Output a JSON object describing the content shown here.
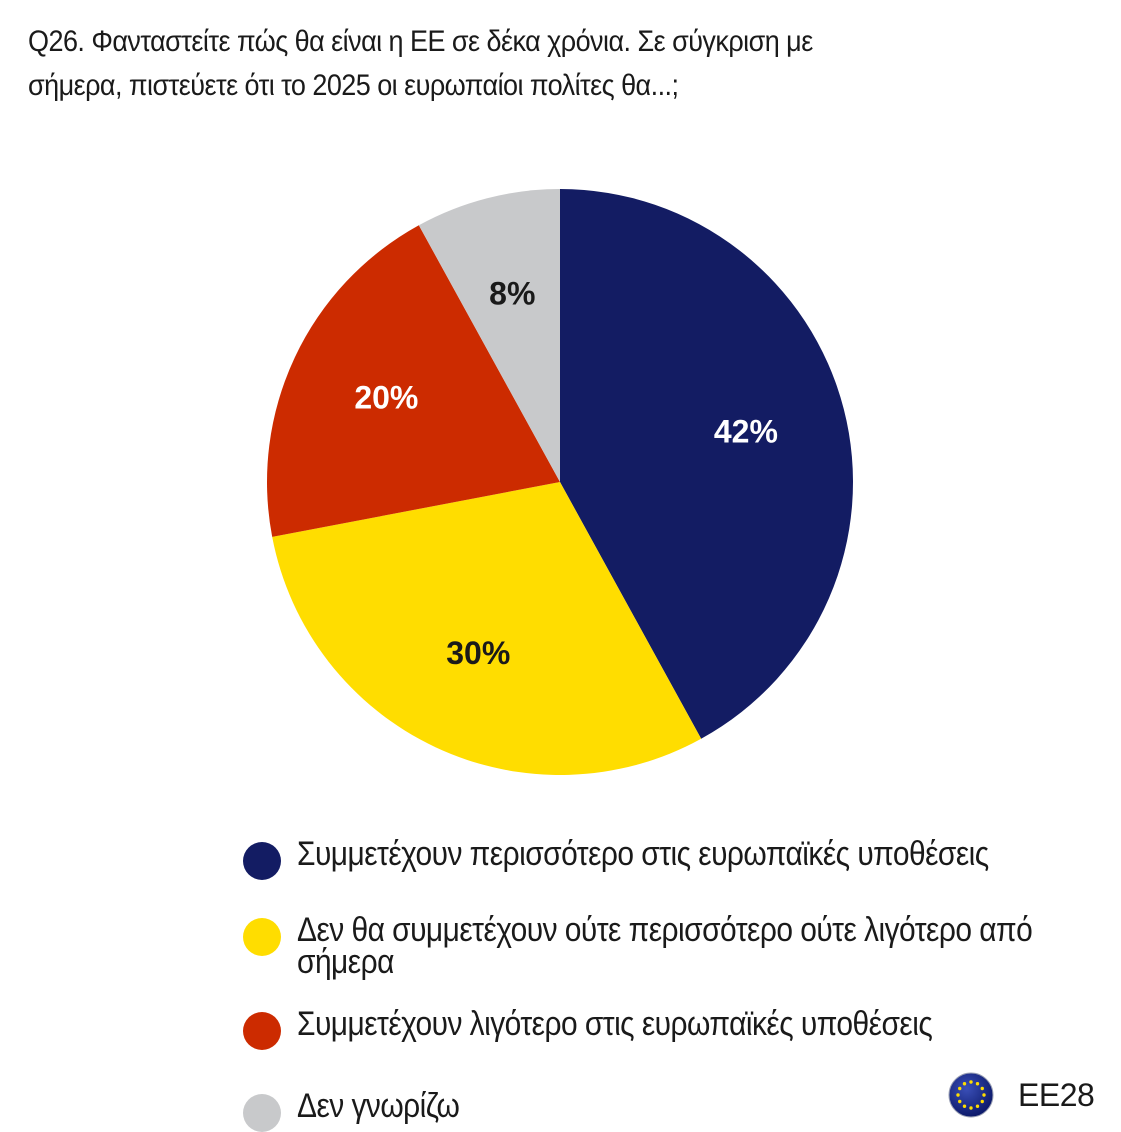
{
  "title_lines": [
    "Q26. Φανταστείτε πώς θα είναι η ΕΕ σε δέκα χρόνια. Σε σύγκριση με",
    "σήμερα, πιστεύετε ότι το 2025 οι ευρωπαίοι πολίτες θα...;"
  ],
  "chart_data": {
    "type": "pie",
    "start": "12 o'clock",
    "direction": "clockwise",
    "slices": [
      {
        "name": "Συμμετέχουν περισσότερο στις ευρωπαϊκές υποθέσεις",
        "value": 42,
        "label": "42%",
        "color": "#131c63",
        "label_color": "#ffffff"
      },
      {
        "name": "Δεν θα συμμετέχουν ούτε περισσότερο ούτε λιγότερο από σήμερα",
        "value": 30,
        "label": "30%",
        "color": "#ffdd00",
        "label_color": "#1a1a1a"
      },
      {
        "name": "Συμμετέχουν λιγότερο στις ευρωπαϊκές υποθέσεις",
        "value": 20,
        "label": "20%",
        "color": "#cc2b00",
        "label_color": "#ffffff"
      },
      {
        "name": "Δεν γνωρίζω",
        "value": 8,
        "label": "8%",
        "color": "#c8c9cb",
        "label_color": "#1a1a1a"
      }
    ],
    "legend": {
      "placement": "bottom",
      "items": [
        {
          "text": "Συμμετέχουν περισσότερο στις ευρωπαϊκές υποθέσεις",
          "color": "#131c63"
        },
        {
          "text": "Δεν θα συμμετέχουν ούτε περισσότερο ούτε λιγότερο από σήμερα",
          "color": "#ffdd00"
        },
        {
          "text": "Συμμετέχουν λιγότερο στις ευρωπαϊκές υποθέσεις",
          "color": "#cc2b00"
        },
        {
          "text": "Δεν γνωρίζω",
          "color": "#c8c9cb"
        }
      ]
    }
  },
  "badge": {
    "icon": "eu-flag-icon",
    "label": "ΕΕ28"
  }
}
